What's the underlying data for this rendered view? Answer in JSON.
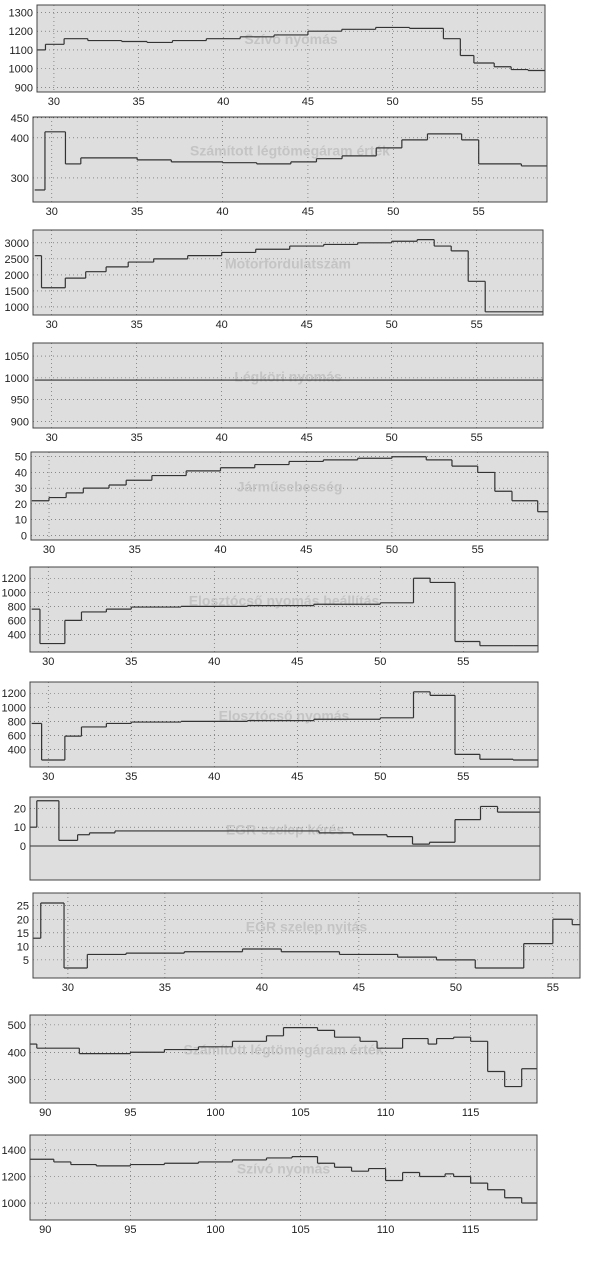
{
  "chart_data": [
    {
      "type": "line",
      "step": "post",
      "title": "Szívó nyomás",
      "color": "#333333",
      "grid": true,
      "x": [
        29,
        29.5,
        30.6,
        32,
        34,
        35.5,
        37,
        39,
        41,
        43,
        45,
        47,
        49,
        51,
        53,
        54,
        54.8,
        56,
        57,
        58
      ],
      "values": [
        1100,
        1130,
        1160,
        1150,
        1145,
        1140,
        1150,
        1160,
        1170,
        1180,
        1200,
        1210,
        1220,
        1215,
        1160,
        1070,
        1030,
        1010,
        995,
        990
      ],
      "xlim": [
        29,
        59
      ],
      "ylim": [
        875,
        1340
      ],
      "xticks": [
        30,
        35,
        40,
        45,
        50,
        55
      ],
      "yticks": [
        900,
        1000,
        1100,
        1200,
        1300
      ]
    },
    {
      "type": "line",
      "step": "post",
      "title": "Számított légtömegáram érték",
      "color": "#333333",
      "grid": true,
      "x": [
        29,
        29.6,
        30.8,
        31.7,
        35,
        37,
        40,
        42,
        44,
        45.5,
        47,
        49,
        50.5,
        52,
        54,
        55,
        57.5
      ],
      "values": [
        270,
        415,
        335,
        350,
        345,
        340,
        338,
        335,
        340,
        348,
        355,
        375,
        395,
        410,
        395,
        335,
        330
      ],
      "xlim": [
        28.9,
        59
      ],
      "ylim": [
        240,
        452
      ],
      "xticks": [
        30,
        35,
        40,
        45,
        50,
        55
      ],
      "yticks": [
        300,
        400,
        450
      ]
    },
    {
      "type": "line",
      "step": "post",
      "title": "Motorfordulatszám",
      "color": "#333333",
      "grid": true,
      "x": [
        29,
        29.4,
        30.8,
        32,
        33.2,
        34.5,
        36,
        38,
        40,
        42,
        44,
        46,
        48,
        50,
        51.5,
        52.5,
        53.5,
        54.5,
        55.5
      ],
      "values": [
        2600,
        1600,
        1900,
        2100,
        2250,
        2400,
        2500,
        2600,
        2700,
        2800,
        2900,
        2950,
        3000,
        3050,
        3100,
        2900,
        2750,
        1800,
        850
      ],
      "xlim": [
        28.9,
        58.9
      ],
      "ylim": [
        750,
        3400
      ],
      "xticks": [
        30,
        35,
        40,
        45,
        50,
        55
      ],
      "yticks": [
        1000,
        1500,
        2000,
        2500,
        3000
      ]
    },
    {
      "type": "line",
      "step": "post",
      "title": "Légköri nyomás",
      "color": "#333333",
      "grid": true,
      "x": [
        29
      ],
      "values": [
        995
      ],
      "xlim": [
        28.9,
        58.9
      ],
      "ylim": [
        885,
        1080
      ],
      "xticks": [
        30,
        35,
        40,
        45,
        50,
        55
      ],
      "yticks": [
        900,
        950,
        1000,
        1050
      ]
    },
    {
      "type": "line",
      "step": "post",
      "title": "Járműsebesség",
      "color": "#333333",
      "grid": true,
      "x": [
        29,
        30,
        31,
        32,
        33.5,
        34.5,
        36,
        38,
        40,
        42,
        44,
        46,
        48,
        50,
        52,
        53.5,
        55,
        56,
        57,
        58.5
      ],
      "values": [
        22,
        24,
        27,
        30,
        32,
        35,
        38,
        41,
        43,
        45,
        47,
        48,
        49,
        50,
        48,
        44,
        40,
        28,
        22,
        15
      ],
      "xlim": [
        28.95,
        59.1
      ],
      "ylim": [
        -3,
        53
      ],
      "xticks": [
        30,
        35,
        40,
        45,
        50,
        55
      ],
      "yticks": [
        0,
        10,
        20,
        30,
        40,
        50
      ]
    },
    {
      "type": "line",
      "step": "post",
      "title": "Elosztócső nyomás beállítás",
      "color": "#333333",
      "grid": true,
      "x": [
        29,
        29.5,
        31,
        32,
        33.5,
        35,
        38,
        42,
        46,
        50,
        52,
        53,
        54.5,
        56,
        58
      ],
      "values": [
        760,
        270,
        600,
        720,
        760,
        790,
        800,
        810,
        830,
        850,
        1200,
        1140,
        300,
        240,
        240
      ],
      "xlim": [
        28.9,
        59.5
      ],
      "ylim": [
        150,
        1360
      ],
      "xticks": [
        30,
        35,
        40,
        45,
        50,
        55
      ],
      "yticks": [
        400,
        600,
        800,
        1000,
        1200
      ]
    },
    {
      "type": "line",
      "step": "post",
      "title": "Elosztócső nyomás",
      "color": "#333333",
      "grid": true,
      "x": [
        29,
        29.6,
        31,
        32,
        33.5,
        35,
        38,
        42,
        46,
        50,
        52,
        53,
        54.5,
        56,
        58
      ],
      "values": [
        770,
        250,
        590,
        720,
        770,
        790,
        800,
        810,
        830,
        850,
        1220,
        1170,
        330,
        260,
        250
      ],
      "xlim": [
        28.9,
        59.5
      ],
      "ylim": [
        150,
        1360
      ],
      "xticks": [
        30,
        35,
        40,
        45,
        50,
        55
      ],
      "yticks": [
        400,
        600,
        800,
        1000,
        1200
      ]
    },
    {
      "type": "line",
      "step": "post",
      "title": "EGR-szelep kérés",
      "color": "#333333",
      "grid": true,
      "zeroline": true,
      "x": [
        29,
        29.4,
        30.7,
        31.8,
        32.5,
        34,
        40,
        46,
        48,
        50,
        51.5,
        52.5,
        54,
        55.5,
        56.5
      ],
      "values": [
        10,
        24,
        3,
        6,
        7,
        8,
        8,
        7,
        6,
        5,
        1,
        2,
        14,
        21,
        18
      ],
      "xlim": [
        29,
        59
      ],
      "ylim": [
        -18,
        26
      ],
      "xticks": [],
      "yticks": [
        0,
        10,
        20
      ]
    },
    {
      "type": "line",
      "step": "post",
      "title": "EGR szelep nyitás",
      "color": "#333333",
      "grid": true,
      "x": [
        28.2,
        28.6,
        29.8,
        31,
        33,
        36,
        39,
        41,
        44,
        47,
        49,
        51,
        53.5,
        55,
        56
      ],
      "values": [
        13,
        26,
        2,
        7,
        7.5,
        8,
        9,
        8,
        7,
        6,
        5,
        2,
        11,
        20,
        18
      ],
      "xlim": [
        28.2,
        56.4
      ],
      "ylim": [
        -1.7,
        29.7
      ],
      "xticks": [
        30,
        35,
        40,
        45,
        50,
        55
      ],
      "yticks": [
        5,
        10,
        15,
        20,
        25
      ]
    },
    {
      "type": "line",
      "step": "post",
      "title": "Számított légtömegáram érték",
      "color": "#333333",
      "grid": true,
      "x": [
        89.1,
        89.5,
        92,
        95,
        97,
        99,
        101,
        103,
        104,
        106,
        107,
        108.5,
        109.5,
        111,
        112.5,
        113,
        114,
        115,
        116,
        117,
        118
      ],
      "values": [
        430,
        415,
        395,
        400,
        410,
        420,
        440,
        460,
        490,
        480,
        455,
        440,
        415,
        450,
        430,
        450,
        455,
        440,
        330,
        275,
        340
      ],
      "xlim": [
        89.1,
        118.9
      ],
      "ylim": [
        215,
        536
      ],
      "xticks": [
        90,
        95,
        100,
        105,
        110,
        115
      ],
      "yticks": [
        300,
        400,
        500
      ]
    },
    {
      "type": "line",
      "step": "post",
      "title": "Szívó nyomás",
      "color": "#333333",
      "grid": true,
      "x": [
        89.1,
        90.5,
        91.5,
        93,
        95,
        97,
        99,
        101,
        103,
        104.5,
        106,
        107,
        108,
        109,
        110,
        111,
        112,
        113.5,
        114,
        115,
        116,
        117,
        118
      ],
      "values": [
        1330,
        1310,
        1290,
        1280,
        1290,
        1300,
        1310,
        1325,
        1340,
        1350,
        1300,
        1270,
        1240,
        1260,
        1170,
        1230,
        1200,
        1220,
        1200,
        1150,
        1100,
        1040,
        1000
      ],
      "xlim": [
        89.1,
        118.9
      ],
      "ylim": [
        872,
        1513
      ],
      "xticks": [
        90,
        95,
        100,
        105,
        110,
        115
      ],
      "yticks": [
        1000,
        1200,
        1400
      ]
    }
  ]
}
